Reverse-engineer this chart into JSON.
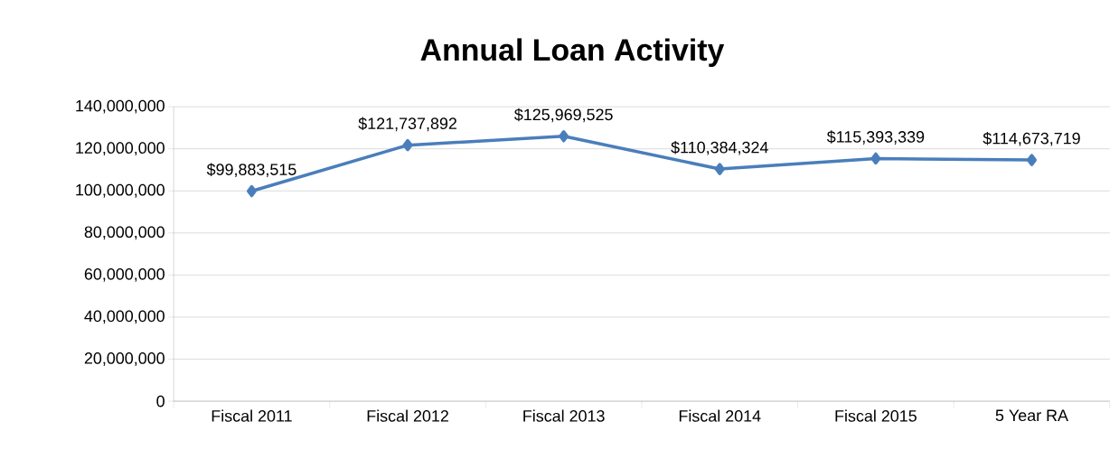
{
  "chart_data": {
    "type": "line",
    "title": "Annual Loan Activity",
    "categories": [
      "Fiscal 2011",
      "Fiscal 2012",
      "Fiscal 2013",
      "Fiscal 2014",
      "Fiscal 2015",
      "5 Year RA"
    ],
    "values": [
      99883515,
      121737892,
      125969525,
      110384324,
      115393339,
      114673719
    ],
    "value_labels": [
      "$99,883,515",
      "$121,737,892",
      "$125,969,525",
      "$110,384,324",
      "$115,393,339",
      "$114,673,719"
    ],
    "color": "#4a7ebb",
    "ylim": [
      0,
      140000000
    ],
    "yticks": [
      0,
      {
        "value": 20000000,
        "label": "20,000,000"
      },
      {
        "value": 40000000,
        "label": "40,000,000"
      },
      {
        "value": 60000000,
        "label": "60,000,000"
      },
      {
        "value": 80000000,
        "label": "80,000,000"
      },
      {
        "value": 100000000,
        "label": "100,000,000"
      },
      {
        "value": 120000000,
        "label": "120,000,000"
      },
      {
        "value": 140000000,
        "label": "140,000,000"
      }
    ],
    "grid": "y",
    "marker": "diamond",
    "line_style": "solid"
  }
}
